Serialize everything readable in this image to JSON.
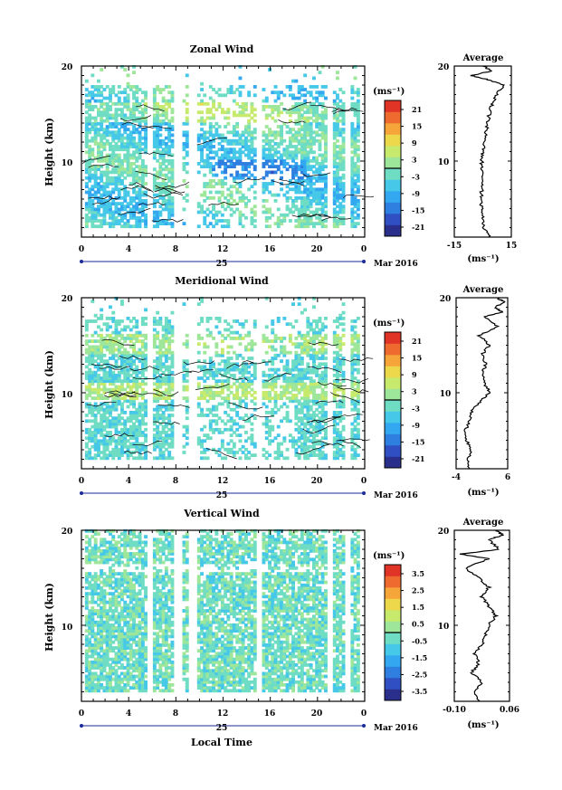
{
  "colors": {
    "colormap": [
      "#2b2f8c",
      "#2f4fc2",
      "#2e7fe0",
      "#33a8f0",
      "#46c8e8",
      "#6fdcc4",
      "#9ee69a",
      "#c8ea6c",
      "#ecd84a",
      "#f5a53a",
      "#ef6a2e",
      "#e03426"
    ],
    "axis": "#000000",
    "time_marker": "#1a2a9a"
  },
  "shared": {
    "x_ticks": [
      "0",
      "4",
      "8",
      "12",
      "16",
      "20",
      "0"
    ],
    "date_label": "25",
    "month_label": "Mar 2016",
    "unit_label": "(ms⁻¹)",
    "avg_unit_label": "(ms⁻¹)",
    "avg_title": "Average",
    "xlabel": "Local Time",
    "ylabel": "Height (km)"
  },
  "chart_data": [
    {
      "type": "heatmap",
      "title": "Zonal Wind",
      "ylabel": "Height (km)",
      "y_ticks": [
        "10",
        "20"
      ],
      "ylim": [
        2,
        20
      ],
      "xlim": [
        0,
        24
      ],
      "colorbar": {
        "label": "(ms⁻¹)",
        "ticks": [
          "21",
          "15",
          "9",
          "3",
          "-3",
          "-9",
          "-15",
          "-21"
        ],
        "range": [
          -24,
          24
        ]
      },
      "average_profile": {
        "title": "Average",
        "xlim": [
          -15,
          15
        ],
        "x_ticks": [
          "-15",
          "15"
        ],
        "y_ticks": [
          "10",
          "20"
        ],
        "unit": "(ms⁻¹)",
        "height": [
          2.0,
          3.0,
          4.0,
          5.0,
          6.0,
          7.0,
          8.0,
          9.0,
          10.0,
          11.0,
          12.0,
          13.0,
          14.0,
          15.0,
          16.0,
          17.0,
          18.0,
          18.5,
          19.0,
          19.5,
          20.0
        ],
        "value": [
          4.0,
          0.5,
          0.0,
          -0.5,
          -1.0,
          -0.5,
          0.0,
          -1.0,
          -0.5,
          0.0,
          0.5,
          1.5,
          2.5,
          3.5,
          5.0,
          7.0,
          11.0,
          4.0,
          -6.0,
          5.0,
          0.0
        ]
      }
    },
    {
      "type": "heatmap",
      "title": "Meridional Wind",
      "ylabel": "Height (km)",
      "y_ticks": [
        "10",
        "20"
      ],
      "ylim": [
        2,
        20
      ],
      "xlim": [
        0,
        24
      ],
      "colorbar": {
        "label": "(ms⁻¹)",
        "ticks": [
          "21",
          "15",
          "9",
          "3",
          "-3",
          "-9",
          "-15",
          "-21"
        ],
        "range": [
          -24,
          24
        ]
      },
      "average_profile": {
        "title": "Average",
        "xlim": [
          -4,
          6
        ],
        "x_ticks": [
          "-4",
          "6"
        ],
        "y_ticks": [
          "10",
          "20"
        ],
        "unit": "(ms⁻¹)",
        "height": [
          2.0,
          3.0,
          4.0,
          5.0,
          6.0,
          7.0,
          8.0,
          9.0,
          10.0,
          11.0,
          12.0,
          13.0,
          14.0,
          15.0,
          16.0,
          17.0,
          18.0,
          18.5,
          19.0,
          19.5,
          20.0
        ],
        "value": [
          -1.5,
          -1.8,
          -1.0,
          -2.0,
          -2.2,
          -1.5,
          -1.0,
          0.5,
          2.5,
          1.5,
          1.0,
          1.8,
          1.0,
          2.5,
          0.5,
          4.0,
          1.5,
          5.0,
          3.5,
          5.5,
          4.0
        ]
      }
    },
    {
      "type": "heatmap",
      "title": "Vertical Wind",
      "ylabel": "Height (km)",
      "xlabel": "Local Time",
      "y_ticks": [
        "10",
        "20"
      ],
      "ylim": [
        2,
        20
      ],
      "xlim": [
        0,
        24
      ],
      "colorbar": {
        "label": "(ms⁻¹)",
        "ticks": [
          "3.5",
          "2.5",
          "1.5",
          "0.5",
          "-0.5",
          "-1.5",
          "-2.5",
          "-3.5"
        ],
        "range": [
          -4,
          4
        ]
      },
      "average_profile": {
        "title": "Average",
        "xlim": [
          -0.1,
          0.06
        ],
        "x_ticks": [
          "-0.10",
          "0.06"
        ],
        "y_ticks": [
          "10",
          "20"
        ],
        "unit": "(ms⁻¹)",
        "height": [
          2.0,
          3.0,
          4.0,
          5.0,
          6.0,
          7.0,
          8.0,
          9.0,
          10.0,
          11.0,
          12.0,
          13.0,
          14.0,
          15.0,
          16.0,
          17.0,
          17.5,
          18.0,
          19.0,
          19.5,
          20.0
        ],
        "value": [
          -0.03,
          -0.04,
          -0.02,
          -0.05,
          -0.03,
          -0.04,
          -0.02,
          -0.01,
          0.0,
          0.02,
          0.0,
          -0.02,
          0.0,
          -0.03,
          -0.07,
          0.0,
          -0.08,
          0.03,
          0.0,
          0.04,
          0.02
        ]
      }
    }
  ]
}
